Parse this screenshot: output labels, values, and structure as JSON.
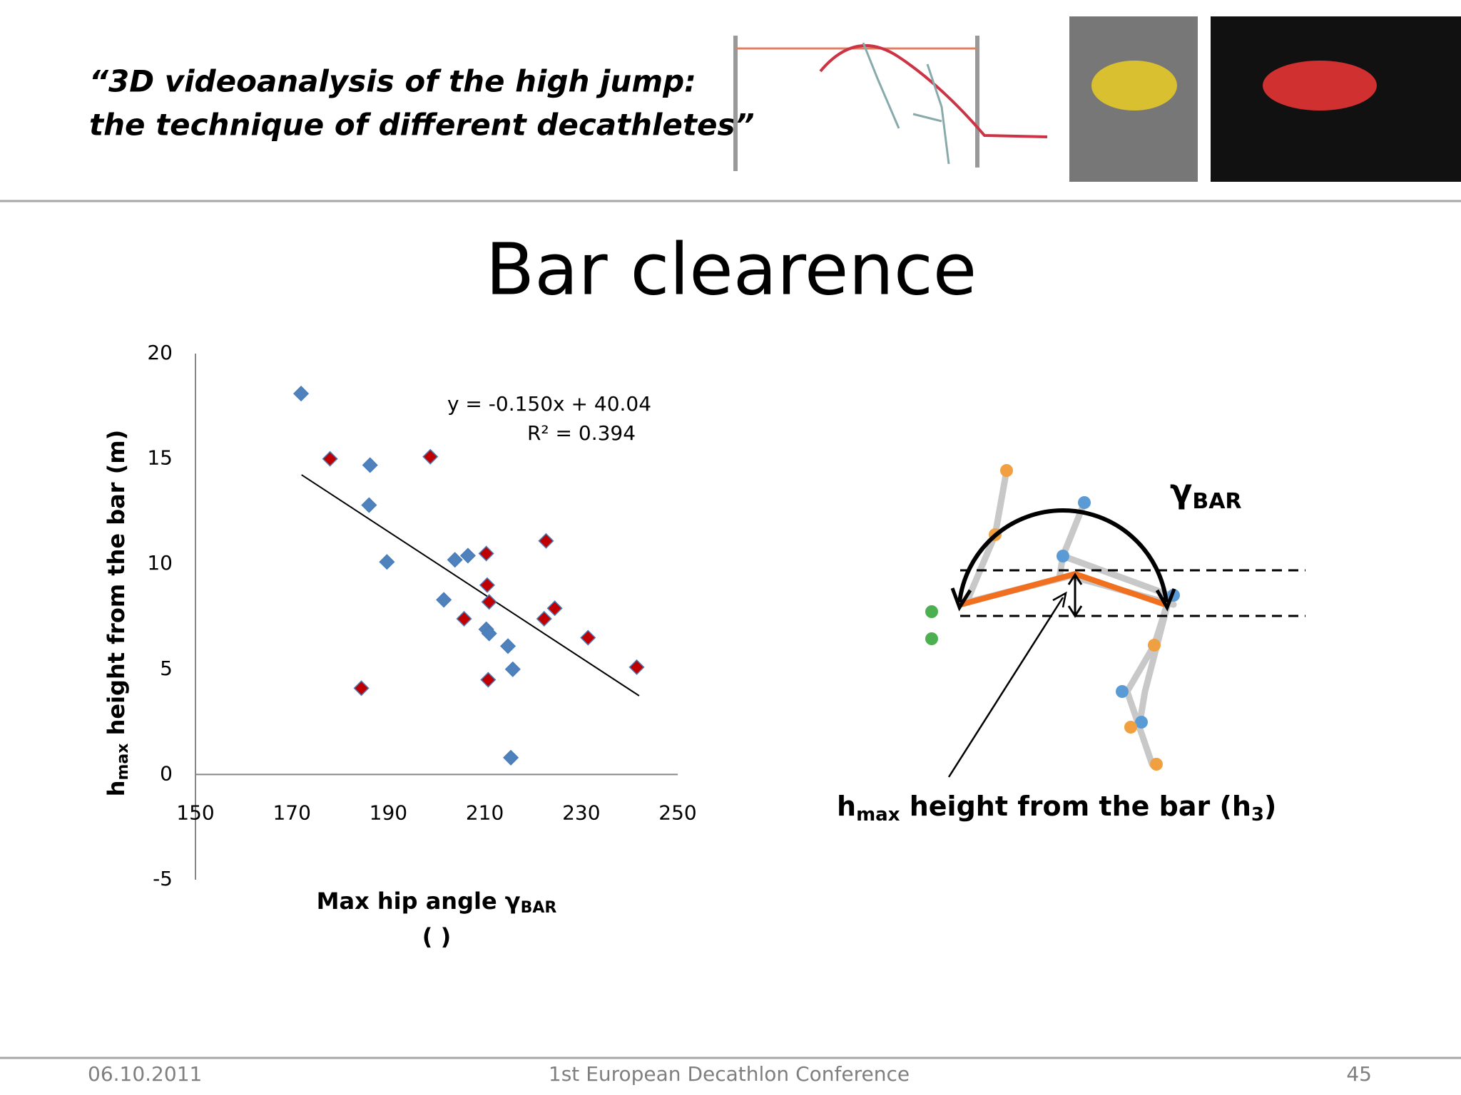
{
  "header": {
    "title_lines": [
      "“3D videoanalysis of the high jump:",
      "the technique of different decathletes”"
    ]
  },
  "slide_title": "Bar clearence",
  "chart_data": {
    "type": "scatter",
    "x_label": {
      "main": "Max hip angle γ",
      "sub": "BAR",
      "second_line": "( )"
    },
    "y_label": {
      "main": "h",
      "sub": "max",
      "rest": " height from the bar (m)"
    },
    "series": [
      {
        "color": "#4f81bd",
        "x": [
          171.9,
          186.2,
          186,
          189.7,
          203.8,
          206.5,
          201.5,
          210.3,
          210.9,
          214.8,
          215.8,
          215.4
        ],
        "values": [
          18.1,
          14.7,
          12.8,
          10.1,
          10.2,
          10.4,
          8.3,
          6.9,
          6.7,
          6.1,
          5.0,
          0.8
        ]
      },
      {
        "color": "#c00000",
        "x": [
          177.9,
          198.7,
          222.7,
          210.3,
          210.5,
          210.9,
          205.7,
          222.3,
          224.5,
          231.4,
          241.5,
          184.4,
          210.7
        ],
        "values": [
          15.0,
          15.1,
          11.1,
          10.5,
          9.0,
          8.2,
          7.4,
          7.4,
          7.9,
          6.5,
          5.1,
          4.1,
          4.5
        ]
      }
    ],
    "trendline": {
      "x": [
        172,
        242
      ],
      "values": [
        14.24,
        3.74
      ]
    },
    "annotations": [
      "y = -0.150x + 40.04",
      "R² = 0.394"
    ],
    "xlim": [
      150,
      250
    ],
    "ylim": [
      -5,
      20
    ],
    "xticks": [
      150,
      170,
      190,
      210,
      230,
      250
    ],
    "yticks": [
      -5,
      0,
      5,
      10,
      15,
      20
    ]
  },
  "diagram": {
    "angle_label": {
      "main": "γ",
      "sub": "BAR"
    },
    "height_label": {
      "main": "h",
      "sub": "max",
      "rest": " height from the bar (h",
      "sub2": "3",
      "end": ")"
    }
  },
  "footer": {
    "date": "06.10.2011",
    "event": "1st European Decathlon Conference",
    "page": "45"
  }
}
